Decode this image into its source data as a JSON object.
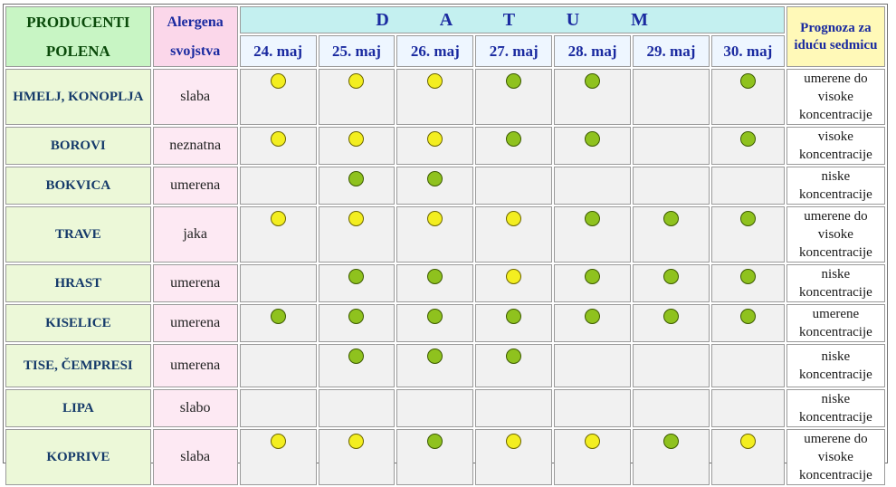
{
  "header": {
    "producers": "PRODUCENTI POLENA",
    "allergen": "Alergena svojstva",
    "datum": "D A T U M",
    "forecast": "Prognoza za iduću sedmicu"
  },
  "dates": [
    "24. maj",
    "25. maj",
    "26. maj",
    "27. maj",
    "28. maj",
    "29. maj",
    "30. maj"
  ],
  "legend": {
    "yellow": "#f3ee20",
    "green": "#8fc21e"
  },
  "rows": [
    {
      "producer": "HMELJ, KONOPLJA",
      "allergen": "slaba",
      "dots": [
        "yellow",
        "yellow",
        "yellow",
        "green",
        "green",
        "",
        "green"
      ],
      "forecast": "umerene do visoke koncentracije"
    },
    {
      "producer": "BOROVI",
      "allergen": "neznatna",
      "dots": [
        "yellow",
        "yellow",
        "yellow",
        "green",
        "green",
        "",
        "green"
      ],
      "forecast": "visoke koncentracije"
    },
    {
      "producer": "BOKVICA",
      "allergen": "umerena",
      "dots": [
        "",
        "green",
        "green",
        "",
        "",
        "",
        ""
      ],
      "forecast": "niske koncentracije"
    },
    {
      "producer": "TRAVE",
      "allergen": "jaka",
      "dots": [
        "yellow",
        "yellow",
        "yellow",
        "yellow",
        "green",
        "green",
        "green"
      ],
      "forecast": "umerene do visoke koncentracije"
    },
    {
      "producer": "HRAST",
      "allergen": "umerena",
      "dots": [
        "",
        "green",
        "green",
        "yellow",
        "green",
        "green",
        "green"
      ],
      "forecast": "niske koncentracije"
    },
    {
      "producer": "KISELICE",
      "allergen": "umerena",
      "dots": [
        "green",
        "green",
        "green",
        "green",
        "green",
        "green",
        "green"
      ],
      "forecast": "umerene koncentracije"
    },
    {
      "producer": "TISE, ČEMPRESI",
      "allergen": "umerena",
      "dots": [
        "",
        "green",
        "green",
        "green",
        "",
        "",
        ""
      ],
      "forecast": "niske koncentracije"
    },
    {
      "producer": "LIPA",
      "allergen": "slabo",
      "dots": [
        "",
        "",
        "",
        "",
        "",
        "",
        ""
      ],
      "forecast": "niske koncentracije"
    },
    {
      "producer": "KOPRIVE",
      "allergen": "slaba",
      "dots": [
        "yellow",
        "yellow",
        "green",
        "yellow",
        "yellow",
        "green",
        "yellow"
      ],
      "forecast": "umerene do visoke koncentracije"
    }
  ]
}
